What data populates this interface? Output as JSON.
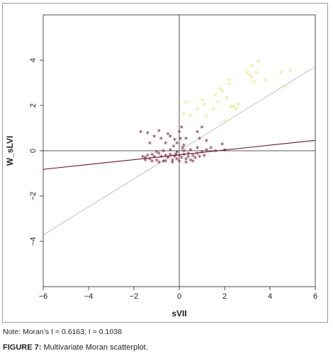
{
  "chart_data": {
    "type": "scatter",
    "xlabel": "sVII",
    "ylabel": "W_sLVI",
    "xlim": [
      -6,
      6
    ],
    "ylim": [
      -6,
      6
    ],
    "x_ticks": [
      "−6",
      "−4",
      "−2",
      "0",
      "2",
      "4",
      "6"
    ],
    "y_ticks": [
      "−4",
      "−2",
      "0",
      "2",
      "4"
    ],
    "series": [
      {
        "marker": "*",
        "color": "#E8E06A",
        "points": [
          [
            0.2,
            1.6
          ],
          [
            0.3,
            2.1
          ],
          [
            0.5,
            1.5
          ],
          [
            0.8,
            1.8
          ],
          [
            1.0,
            2.2
          ],
          [
            1.1,
            2.0
          ],
          [
            1.2,
            1.5
          ],
          [
            1.5,
            1.8
          ],
          [
            1.6,
            2.4
          ],
          [
            1.7,
            2.1
          ],
          [
            1.8,
            2.7
          ],
          [
            1.9,
            2.6
          ],
          [
            2.0,
            1.3
          ],
          [
            2.1,
            2.3
          ],
          [
            2.2,
            3.1
          ],
          [
            2.2,
            2.9
          ],
          [
            2.3,
            1.9
          ],
          [
            2.4,
            1.9
          ],
          [
            2.5,
            1.8
          ],
          [
            2.6,
            2.0
          ],
          [
            3.0,
            3.4
          ],
          [
            3.1,
            3.3
          ],
          [
            3.2,
            3.7
          ],
          [
            3.2,
            3.2
          ],
          [
            3.3,
            3.0
          ],
          [
            3.4,
            3.4
          ],
          [
            3.5,
            3.9
          ],
          [
            3.8,
            3.1
          ],
          [
            4.5,
            3.4
          ],
          [
            4.7,
            2.8
          ],
          [
            4.9,
            3.5
          ]
        ]
      },
      {
        "marker": "*",
        "color": "#6B1232",
        "points": [
          [
            -1.6,
            -0.3
          ],
          [
            -1.5,
            -0.35
          ],
          [
            -1.4,
            -0.25
          ],
          [
            -1.3,
            -0.4
          ],
          [
            -1.2,
            -0.2
          ],
          [
            -1.1,
            -0.3
          ],
          [
            -1.0,
            -0.45
          ],
          [
            -0.9,
            -0.15
          ],
          [
            -0.8,
            -0.3
          ],
          [
            -0.7,
            -0.5
          ],
          [
            -0.6,
            -0.25
          ],
          [
            -0.5,
            -0.35
          ],
          [
            -0.4,
            -0.2
          ],
          [
            -0.3,
            -0.45
          ],
          [
            -0.2,
            -0.3
          ],
          [
            -0.1,
            -0.4
          ],
          [
            0.0,
            -0.25
          ],
          [
            0.1,
            -0.35
          ],
          [
            0.2,
            -0.2
          ],
          [
            0.3,
            -0.4
          ],
          [
            0.4,
            -0.3
          ],
          [
            0.5,
            -0.45
          ],
          [
            0.6,
            -0.25
          ],
          [
            0.7,
            -0.35
          ],
          [
            0.8,
            -0.15
          ],
          [
            0.9,
            -0.3
          ],
          [
            1.0,
            -0.1
          ],
          [
            1.1,
            -0.25
          ],
          [
            -1.5,
            -0.45
          ],
          [
            -1.2,
            -0.5
          ],
          [
            -0.9,
            -0.55
          ],
          [
            -0.6,
            -0.5
          ],
          [
            -0.3,
            -0.55
          ],
          [
            0.0,
            -0.5
          ],
          [
            0.3,
            -0.55
          ],
          [
            0.6,
            -0.5
          ],
          [
            -1.0,
            -0.1
          ],
          [
            -0.7,
            -0.05
          ],
          [
            -0.4,
            0.0
          ],
          [
            -0.1,
            -0.1
          ],
          [
            0.2,
            -0.05
          ],
          [
            0.5,
            0.0
          ],
          [
            0.8,
            0.1
          ],
          [
            1.2,
            0.0
          ],
          [
            1.4,
            0.1
          ],
          [
            -0.8,
            0.5
          ],
          [
            -0.6,
            0.3
          ],
          [
            -0.4,
            0.6
          ],
          [
            -0.2,
            0.45
          ],
          [
            0.0,
            0.8
          ],
          [
            0.05,
            0.5
          ],
          [
            0.1,
            1.0
          ],
          [
            0.2,
            0.2
          ],
          [
            -0.1,
            0.3
          ],
          [
            0.3,
            0.5
          ],
          [
            -1.3,
            0.3
          ],
          [
            -1.1,
            0.6
          ],
          [
            -1.7,
            0.8
          ],
          [
            -1.4,
            0.75
          ],
          [
            -0.9,
            0.85
          ],
          [
            -0.5,
            0.7
          ],
          [
            0.9,
            0.5
          ],
          [
            1.0,
            1.0
          ],
          [
            0.8,
            0.8
          ],
          [
            1.2,
            0.4
          ],
          [
            1.9,
            0.25
          ],
          [
            2.0,
            0.0
          ],
          [
            1.6,
            -0.05
          ],
          [
            0.4,
            -0.15
          ],
          [
            -0.15,
            -0.2
          ],
          [
            0.15,
            0.1
          ],
          [
            -0.25,
            0.15
          ]
        ]
      }
    ],
    "lines": [
      {
        "color": "#B8B8B8",
        "from": [
          -6,
          -3.72
        ],
        "to": [
          6,
          3.72
        ]
      },
      {
        "color": "#6B1232",
        "from": [
          -6,
          -0.82
        ],
        "to": [
          6,
          0.46
        ]
      }
    ]
  },
  "note": "Note: Moran’s I = 0.6163; I = 0.1038",
  "caption": {
    "label": "FIGURE 7:",
    "text": " Multivariate Moran scatterplot."
  }
}
